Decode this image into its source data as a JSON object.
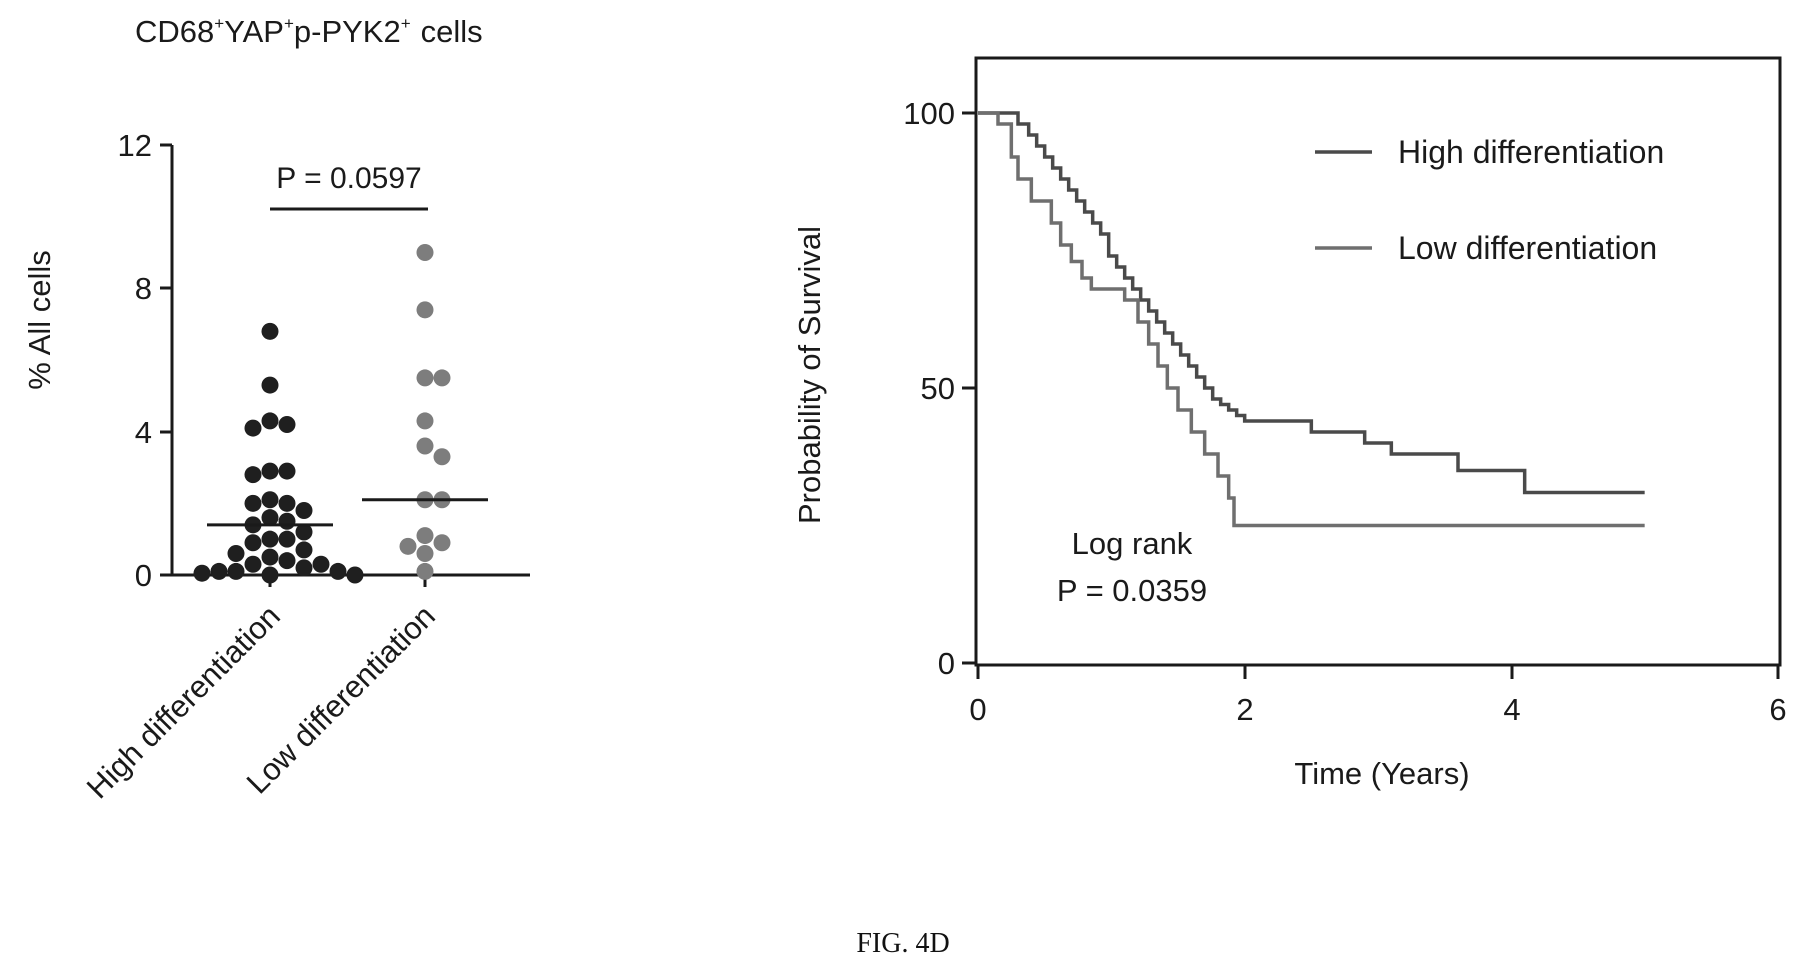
{
  "figure_caption": "FIG. 4D",
  "chart_data": [
    {
      "type": "scatter",
      "title": "CD68+YAP+p-PYK2+ cells",
      "title_parts": {
        "marker1": "CD68",
        "marker2": "YAP",
        "marker3": "p-PYK2",
        "sup": "+",
        "suffix": "cells"
      },
      "ylabel": "% All cells",
      "xlabel": "",
      "ylim": [
        0,
        12
      ],
      "yticks": [
        "0",
        "4",
        "8",
        "12"
      ],
      "categories": [
        "High differentiation",
        "Low differentiation"
      ],
      "annotation": "P = 0.0597",
      "series": [
        {
          "category": "High differentiation",
          "color": "#1f1f1f",
          "median": 1.4,
          "values": [
            6.8,
            5.3,
            4.3,
            4.2,
            4.1,
            2.9,
            2.9,
            2.8,
            2.1,
            2.0,
            2.0,
            1.8,
            1.6,
            1.5,
            1.4,
            1.2,
            1.0,
            1.0,
            0.9,
            0.7,
            0.6,
            0.5,
            0.4,
            0.3,
            0.3,
            0.2,
            0.1,
            0.1,
            0.1,
            0.05,
            0.0,
            0.0
          ]
        },
        {
          "category": "Low differentiation",
          "color": "#7d7d7d",
          "median": 2.1,
          "values": [
            9.0,
            7.4,
            5.5,
            5.5,
            4.3,
            3.6,
            3.3,
            2.1,
            2.1,
            1.1,
            0.9,
            0.8,
            0.6,
            0.1
          ]
        }
      ]
    },
    {
      "type": "line",
      "title": "",
      "ylabel": "Probability of Survival",
      "xlabel": "Time (Years)",
      "xlim": [
        0,
        6
      ],
      "ylim": [
        0,
        100
      ],
      "xticks": [
        "0",
        "2",
        "4",
        "6"
      ],
      "yticks": [
        "0",
        "50",
        "100"
      ],
      "legend_position": "top-right",
      "annotation": [
        "Log rank",
        "P = 0.0359"
      ],
      "series": [
        {
          "name": "High differentiation",
          "color": "#4a4a4a",
          "x": [
            0,
            0.3,
            0.38,
            0.44,
            0.5,
            0.56,
            0.62,
            0.68,
            0.74,
            0.8,
            0.86,
            0.92,
            0.98,
            1.04,
            1.1,
            1.16,
            1.22,
            1.28,
            1.34,
            1.4,
            1.46,
            1.52,
            1.58,
            1.64,
            1.7,
            1.76,
            1.82,
            1.88,
            1.94,
            2.0,
            2.1,
            2.5,
            2.6,
            2.9,
            3.1,
            3.6,
            3.7,
            4.1,
            4.2,
            5.0
          ],
          "y": [
            100,
            98,
            96,
            94,
            92,
            90,
            88,
            86,
            84,
            82,
            80,
            78,
            74,
            72,
            70,
            68,
            66,
            64,
            62,
            60,
            58,
            56,
            54,
            52,
            50,
            48,
            47,
            46,
            45,
            44,
            44,
            42,
            42,
            40,
            38,
            35,
            35,
            31,
            31,
            31
          ]
        },
        {
          "name": "Low differentiation",
          "color": "#6f6f6f",
          "x": [
            0,
            0.15,
            0.25,
            0.3,
            0.4,
            0.55,
            0.62,
            0.7,
            0.78,
            0.85,
            1.1,
            1.2,
            1.28,
            1.35,
            1.42,
            1.5,
            1.6,
            1.7,
            1.8,
            1.88,
            1.92,
            5.0
          ],
          "y": [
            100,
            98,
            92,
            88,
            84,
            80,
            76,
            73,
            70,
            68,
            66,
            62,
            58,
            54,
            50,
            46,
            42,
            38,
            34,
            30,
            25,
            25
          ]
        }
      ]
    }
  ]
}
